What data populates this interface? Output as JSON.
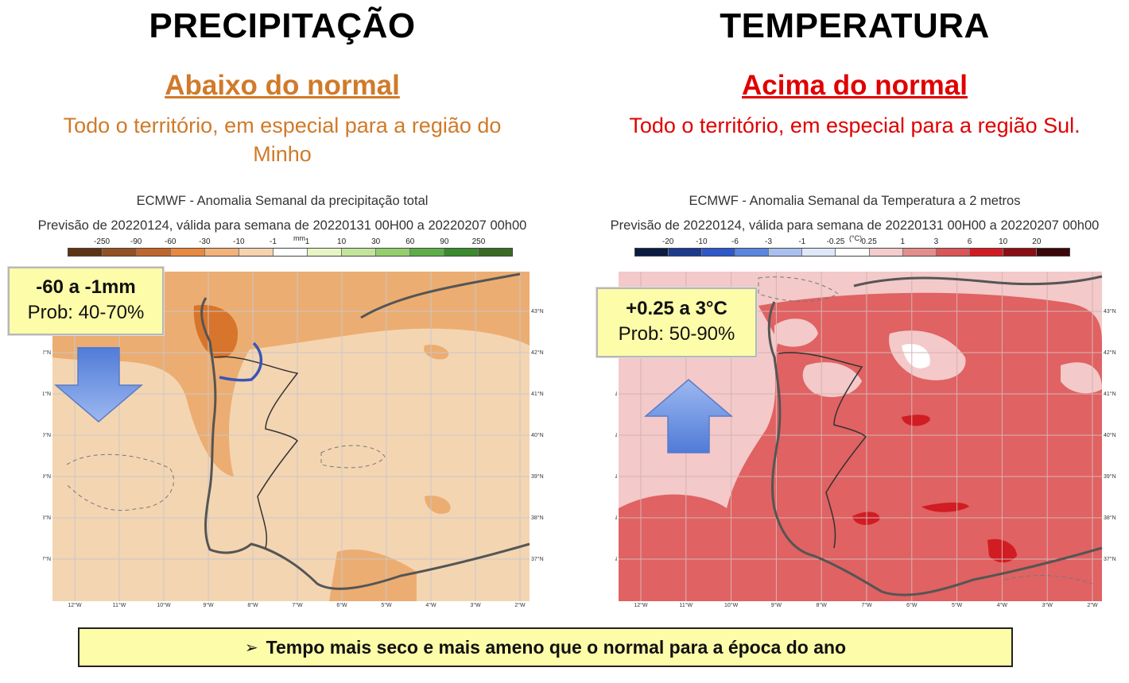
{
  "precip": {
    "section_title": "PRECIPITAÇÃO",
    "outlook": "Abaixo do normal",
    "description": "Todo o território, em especial para a região do Minho",
    "chart_title": "ECMWF - Anomalia Semanal da precipitação total",
    "chart_subtitle": "Previsão de 20220124, válida para semana de 20220131 00H00 a 20220207 00h00",
    "legend_unit": "mm",
    "legend_ticks": [
      "-250",
      "-90",
      "-60",
      "-30",
      "-10",
      "-1",
      "1",
      "10",
      "30",
      "60",
      "90",
      "250"
    ],
    "legend_colors": [
      "#5c3414",
      "#935022",
      "#c1662a",
      "#e8893f",
      "#f2b27a",
      "#f6d3ae",
      "#ffffff",
      "#e7f5c4",
      "#c3e59a",
      "#94cf6d",
      "#5eae47",
      "#3a8a2e",
      "#3b6a24"
    ],
    "callout_value": "-60 a -1mm",
    "callout_prob": "Prob: 40-70%",
    "arrow_direction": "down",
    "colors": {
      "outlook": "#d07a2a",
      "arrow": "#4f7bd8"
    }
  },
  "temp": {
    "section_title": "TEMPERATURA",
    "outlook": "Acima do normal",
    "description": "Todo o território, em especial para a região Sul.",
    "chart_title": "ECMWF - Anomalia Semanal da Temperatura a 2 metros",
    "chart_subtitle": "Previsão de 20220124, válida para semana de 20220131 00H00 a 20220207 00h00",
    "legend_unit": "(°C)",
    "legend_ticks": [
      "-20",
      "-10",
      "-6",
      "-3",
      "-1",
      "-0.25",
      "0.25",
      "1",
      "3",
      "6",
      "10",
      "20"
    ],
    "legend_colors": [
      "#0b1b42",
      "#1c3a8e",
      "#2f58c9",
      "#5a86e0",
      "#a9c0ee",
      "#dfe7f8",
      "#ffffff",
      "#f4cccc",
      "#e48d8d",
      "#db5757",
      "#d11c23",
      "#8a0f14",
      "#3b0709"
    ],
    "callout_value": "+0.25 a 3°C",
    "callout_prob": "Prob: 50-90%",
    "arrow_direction": "up",
    "colors": {
      "outlook": "#e00000",
      "arrow": "#4f7bd8"
    }
  },
  "map_axes": {
    "lon_labels": [
      "12°W",
      "11°W",
      "10°W",
      "9°W",
      "8°W",
      "7°W",
      "6°W",
      "5°W",
      "4°W",
      "3°W",
      "2°W"
    ],
    "lat_labels": [
      "43°N",
      "42°N",
      "41°N",
      "40°N",
      "39°N",
      "38°N",
      "37°N"
    ]
  },
  "summary": {
    "marker": "➢",
    "text": "Tempo mais seco e mais ameno que o normal para a época do ano"
  }
}
